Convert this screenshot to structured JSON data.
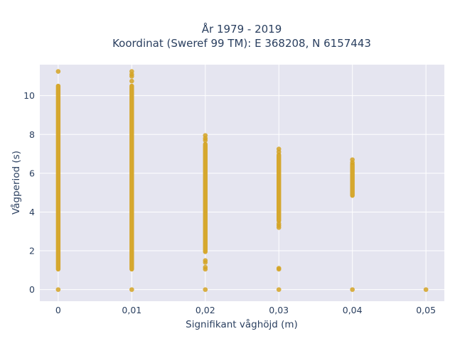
{
  "chart_data": {
    "type": "scatter",
    "title_line1": "År 1979 - 2019",
    "title_line2": "Koordinat (Sweref 99 TM): E 368208, N 6157443",
    "xlabel": "Signifikant våghöjd (m)",
    "ylabel": "Vågperiod (s)",
    "xlim": [
      -0.0025,
      0.0525
    ],
    "ylim": [
      -0.6,
      11.6
    ],
    "x_ticks": [
      {
        "value": 0,
        "label": "0"
      },
      {
        "value": 0.01,
        "label": "0,01"
      },
      {
        "value": 0.02,
        "label": "0,02"
      },
      {
        "value": 0.03,
        "label": "0,03"
      },
      {
        "value": 0.04,
        "label": "0,04"
      },
      {
        "value": 0.05,
        "label": "0,05"
      }
    ],
    "y_ticks": [
      {
        "value": 0,
        "label": "0"
      },
      {
        "value": 2,
        "label": "2"
      },
      {
        "value": 4,
        "label": "4"
      },
      {
        "value": 6,
        "label": "6"
      },
      {
        "value": 8,
        "label": "8"
      },
      {
        "value": 10,
        "label": "10"
      }
    ],
    "grid": true,
    "marker_color": "#d4a323",
    "plot_bg": "#e5e5f0",
    "series": [
      {
        "values": [
          {
            "x": 0,
            "y_min": 1.05,
            "y_max": 10.5,
            "extra_y": [
              0.0,
              11.25
            ]
          },
          {
            "x": 0.01,
            "y_min": 1.05,
            "y_max": 10.5,
            "extra_y": [
              0.0,
              10.75,
              11.0,
              11.1,
              11.25
            ]
          },
          {
            "x": 0.02,
            "y_min": 1.95,
            "y_max": 7.5,
            "extra_y": [
              0.0,
              1.05,
              1.15,
              1.4,
              1.5,
              7.7,
              7.8,
              7.95
            ]
          },
          {
            "x": 0.03,
            "y_min": 3.55,
            "y_max": 6.95,
            "extra_y": [
              0.0,
              1.05,
              1.1,
              3.2,
              3.3,
              3.4,
              7.1,
              7.25
            ]
          },
          {
            "x": 0.04,
            "y_min": 4.85,
            "y_max": 6.45,
            "extra_y": [
              0.0,
              6.55,
              6.7
            ]
          },
          {
            "x": 0.05,
            "y_min": null,
            "y_max": null,
            "extra_y": [
              0.0
            ]
          }
        ]
      }
    ]
  }
}
